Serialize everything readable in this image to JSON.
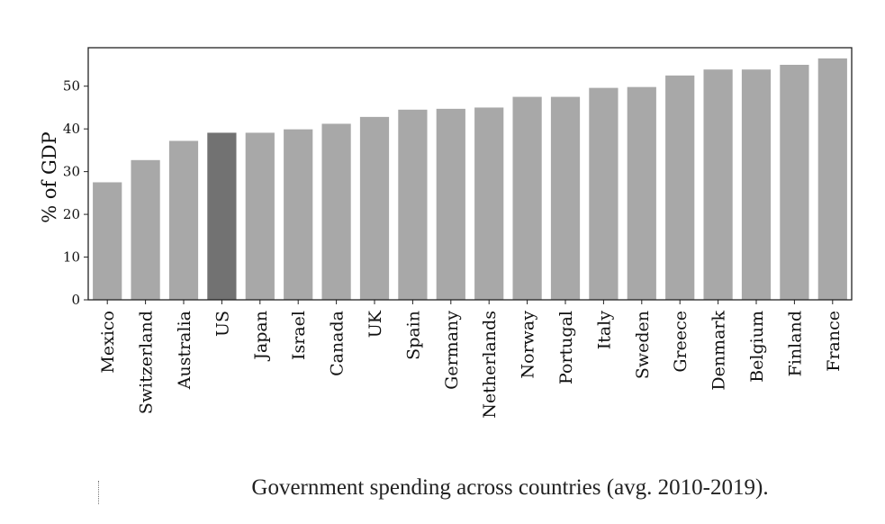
{
  "chart_data": {
    "type": "bar",
    "ylabel": "% of GDP",
    "xlabel": "",
    "ylim": [
      0,
      59
    ],
    "yticks": [
      0,
      10,
      20,
      30,
      40,
      50
    ],
    "categories": [
      "Mexico",
      "Switzerland",
      "Australia",
      "US",
      "Japan",
      "Israel",
      "Canada",
      "UK",
      "Spain",
      "Germany",
      "Netherlands",
      "Norway",
      "Portugal",
      "Italy",
      "Sweden",
      "Greece",
      "Denmark",
      "Belgium",
      "Finland",
      "France"
    ],
    "values": [
      27.5,
      32.7,
      37.2,
      39.1,
      39.1,
      39.9,
      41.2,
      42.8,
      44.5,
      44.7,
      45.0,
      47.5,
      47.5,
      49.6,
      49.8,
      52.5,
      53.9,
      53.9,
      55.0,
      56.5
    ],
    "highlight": "US",
    "colors": {
      "bar": "#a8a8a8",
      "highlight": "#727272",
      "axis": "#222222"
    }
  },
  "caption": "Government spending across countries (avg. 2010-2019)."
}
